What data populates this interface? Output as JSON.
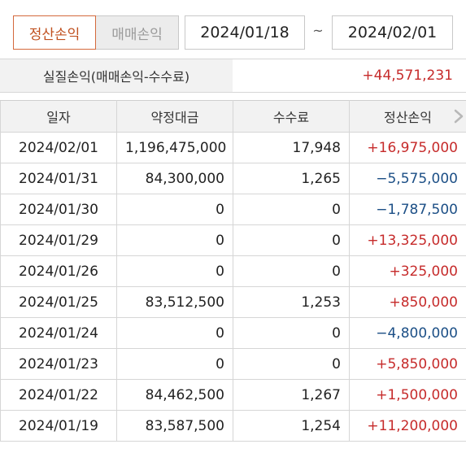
{
  "tabs": [
    {
      "label": "정산손익",
      "active": true
    },
    {
      "label": "매매손익",
      "active": false
    }
  ],
  "date_range": {
    "start": "2024/01/18",
    "separator": "~",
    "end": "2024/02/01"
  },
  "summary": {
    "label": "실질손익(매매손익-수수료)",
    "value": "+44,571,231"
  },
  "table": {
    "headers": [
      "일자",
      "약정대금",
      "수수료",
      "정산손익"
    ],
    "rows": [
      {
        "date": "2024/02/01",
        "amount": "1,196,475,000",
        "fee": "17,948",
        "pnl": "+16,975,000"
      },
      {
        "date": "2024/01/31",
        "amount": "84,300,000",
        "fee": "1,265",
        "pnl": "−5,575,000"
      },
      {
        "date": "2024/01/30",
        "amount": "0",
        "fee": "0",
        "pnl": "−1,787,500"
      },
      {
        "date": "2024/01/29",
        "amount": "0",
        "fee": "0",
        "pnl": "+13,325,000"
      },
      {
        "date": "2024/01/26",
        "amount": "0",
        "fee": "0",
        "pnl": "+325,000"
      },
      {
        "date": "2024/01/25",
        "amount": "83,512,500",
        "fee": "1,253",
        "pnl": "+850,000"
      },
      {
        "date": "2024/01/24",
        "amount": "0",
        "fee": "0",
        "pnl": "−4,800,000"
      },
      {
        "date": "2024/01/23",
        "amount": "0",
        "fee": "0",
        "pnl": "+5,850,000"
      },
      {
        "date": "2024/01/22",
        "amount": "84,462,500",
        "fee": "1,267",
        "pnl": "+1,500,000"
      },
      {
        "date": "2024/01/19",
        "amount": "83,587,500",
        "fee": "1,254",
        "pnl": "+11,200,000"
      }
    ]
  },
  "colors": {
    "positive": "#c62b2b",
    "negative": "#1c4f86",
    "accent": "#d4693c"
  },
  "icons": {
    "scroll_right": "chevron-right-icon"
  }
}
